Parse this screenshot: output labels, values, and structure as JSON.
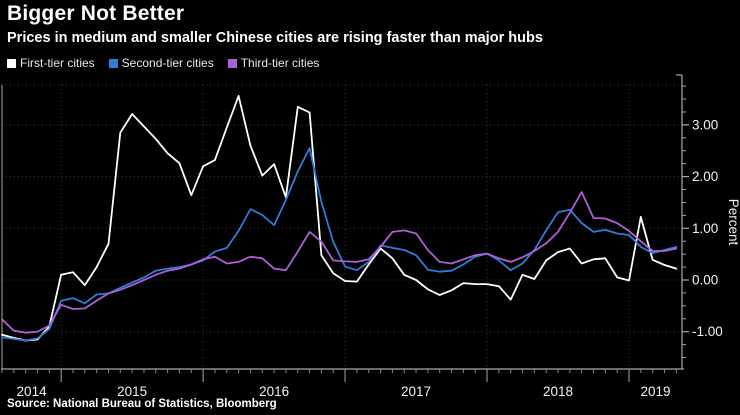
{
  "header": {
    "title": "Bigger Not Better",
    "subtitle": "Prices in medium and smaller Chinese cities are rising faster than major hubs"
  },
  "legend": {
    "items": [
      {
        "label": "First-tier cities",
        "color": "#ffffff"
      },
      {
        "label": "Second-tier cities",
        "color": "#2f7cd6"
      },
      {
        "label": "Third-tier cities",
        "color": "#ae5fd5"
      }
    ]
  },
  "footer": {
    "source": "Source: National Bureau of Statistics, Bloomberg"
  },
  "colors": {
    "background": "#000000",
    "axis": "#a8a8a8",
    "grid": "#3a3a3a",
    "tick_label": "#f2f2f2"
  },
  "chart_data": {
    "type": "line",
    "title": "Bigger Not Better",
    "subtitle": "Prices in medium and smaller Chinese cities are rising faster than major hubs",
    "xlabel": "",
    "ylabel": "Percent",
    "x_tick_labels": [
      "2014",
      "2015",
      "2016",
      "2017",
      "2018",
      "2019"
    ],
    "y_ticks": [
      -1,
      0,
      1,
      2,
      3
    ],
    "y_tick_labels": [
      "-1.00",
      "0.00",
      "1.00",
      "2.00",
      "3.00"
    ],
    "ylim": [
      -1.72,
      3.95
    ],
    "grid": "dotted",
    "legend_position": "top-left",
    "x": [
      "2014-08",
      "2014-09",
      "2014-10",
      "2014-11",
      "2014-12",
      "2015-01",
      "2015-02",
      "2015-03",
      "2015-04",
      "2015-05",
      "2015-06",
      "2015-07",
      "2015-08",
      "2015-09",
      "2015-10",
      "2015-11",
      "2015-12",
      "2016-01",
      "2016-02",
      "2016-03",
      "2016-04",
      "2016-05",
      "2016-06",
      "2016-07",
      "2016-08",
      "2016-09",
      "2016-10",
      "2016-11",
      "2016-12",
      "2017-01",
      "2017-02",
      "2017-03",
      "2017-04",
      "2017-05",
      "2017-06",
      "2017-07",
      "2017-08",
      "2017-09",
      "2017-10",
      "2017-11",
      "2017-12",
      "2018-01",
      "2018-02",
      "2018-03",
      "2018-04",
      "2018-05",
      "2018-06",
      "2018-07",
      "2018-08",
      "2018-09",
      "2018-10",
      "2018-11",
      "2018-12",
      "2019-01",
      "2019-02",
      "2019-03",
      "2019-04",
      "2019-05"
    ],
    "series": [
      {
        "name": "First-tier cities",
        "color": "#ffffff",
        "values": [
          -1.06,
          -1.12,
          -1.17,
          -1.15,
          -0.9,
          0.1,
          0.15,
          -0.1,
          0.25,
          0.7,
          2.85,
          3.21,
          2.97,
          2.73,
          2.45,
          2.26,
          1.64,
          2.2,
          2.32,
          2.95,
          3.56,
          2.6,
          2.02,
          2.24,
          1.6,
          3.35,
          3.24,
          0.48,
          0.13,
          -0.02,
          -0.03,
          0.3,
          0.61,
          0.42,
          0.1,
          0.0,
          -0.18,
          -0.29,
          -0.2,
          -0.06,
          -0.08,
          -0.08,
          -0.12,
          -0.38,
          0.1,
          0.02,
          0.38,
          0.54,
          0.61,
          0.32,
          0.4,
          0.42,
          0.05,
          -0.01,
          1.22,
          0.39,
          0.29,
          0.22
        ]
      },
      {
        "name": "Second-tier cities",
        "color": "#2f7cd6",
        "values": [
          -1.11,
          -1.14,
          -1.17,
          -1.13,
          -0.95,
          -0.4,
          -0.35,
          -0.45,
          -0.28,
          -0.26,
          -0.15,
          -0.05,
          0.05,
          0.18,
          0.22,
          0.25,
          0.3,
          0.38,
          0.55,
          0.62,
          0.95,
          1.37,
          1.26,
          1.06,
          1.55,
          2.1,
          2.55,
          1.51,
          0.74,
          0.26,
          0.19,
          0.35,
          0.67,
          0.62,
          0.58,
          0.48,
          0.2,
          0.16,
          0.18,
          0.3,
          0.45,
          0.51,
          0.38,
          0.19,
          0.32,
          0.58,
          0.96,
          1.31,
          1.36,
          1.1,
          0.93,
          0.97,
          0.9,
          0.87,
          0.64,
          0.52,
          0.58,
          0.64
        ]
      },
      {
        "name": "Third-tier cities",
        "color": "#ae5fd5",
        "values": [
          -0.76,
          -0.98,
          -1.02,
          -1.0,
          -0.88,
          -0.48,
          -0.56,
          -0.55,
          -0.4,
          -0.26,
          -0.19,
          -0.1,
          0.0,
          0.1,
          0.18,
          0.22,
          0.3,
          0.4,
          0.45,
          0.32,
          0.35,
          0.45,
          0.42,
          0.22,
          0.19,
          0.55,
          0.93,
          0.74,
          0.38,
          0.36,
          0.35,
          0.4,
          0.64,
          0.93,
          0.96,
          0.9,
          0.58,
          0.35,
          0.32,
          0.4,
          0.48,
          0.51,
          0.42,
          0.35,
          0.44,
          0.56,
          0.71,
          0.93,
          1.3,
          1.7,
          1.2,
          1.19,
          1.1,
          0.95,
          0.75,
          0.56,
          0.56,
          0.61
        ]
      }
    ]
  }
}
